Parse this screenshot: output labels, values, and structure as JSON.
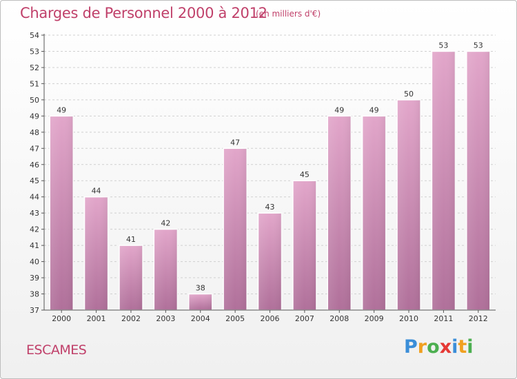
{
  "title": "Charges de Personnel 2000 à 2012",
  "unit_note": "(en milliers d'€)",
  "commune": "ESCAMES",
  "brand": {
    "letters": [
      "P",
      "r",
      "o",
      "x",
      "i",
      "t",
      "i"
    ],
    "colors": [
      "#3b8ed8",
      "#f0a020",
      "#4caf50",
      "#e53935",
      "#3b8ed8",
      "#f0a020",
      "#4caf50"
    ]
  },
  "chart_data": {
    "type": "bar",
    "categories": [
      "2000",
      "2001",
      "2002",
      "2003",
      "2004",
      "2005",
      "2006",
      "2007",
      "2008",
      "2009",
      "2010",
      "2011",
      "2012"
    ],
    "values": [
      49,
      44,
      41,
      42,
      38,
      47,
      43,
      45,
      49,
      49,
      50,
      53,
      53
    ],
    "ylim": [
      37,
      54
    ],
    "yticks": [
      37,
      38,
      39,
      40,
      41,
      42,
      43,
      44,
      45,
      46,
      47,
      48,
      49,
      50,
      51,
      52,
      53,
      54
    ],
    "grid": true,
    "bar_color": "#d88ab4"
  }
}
